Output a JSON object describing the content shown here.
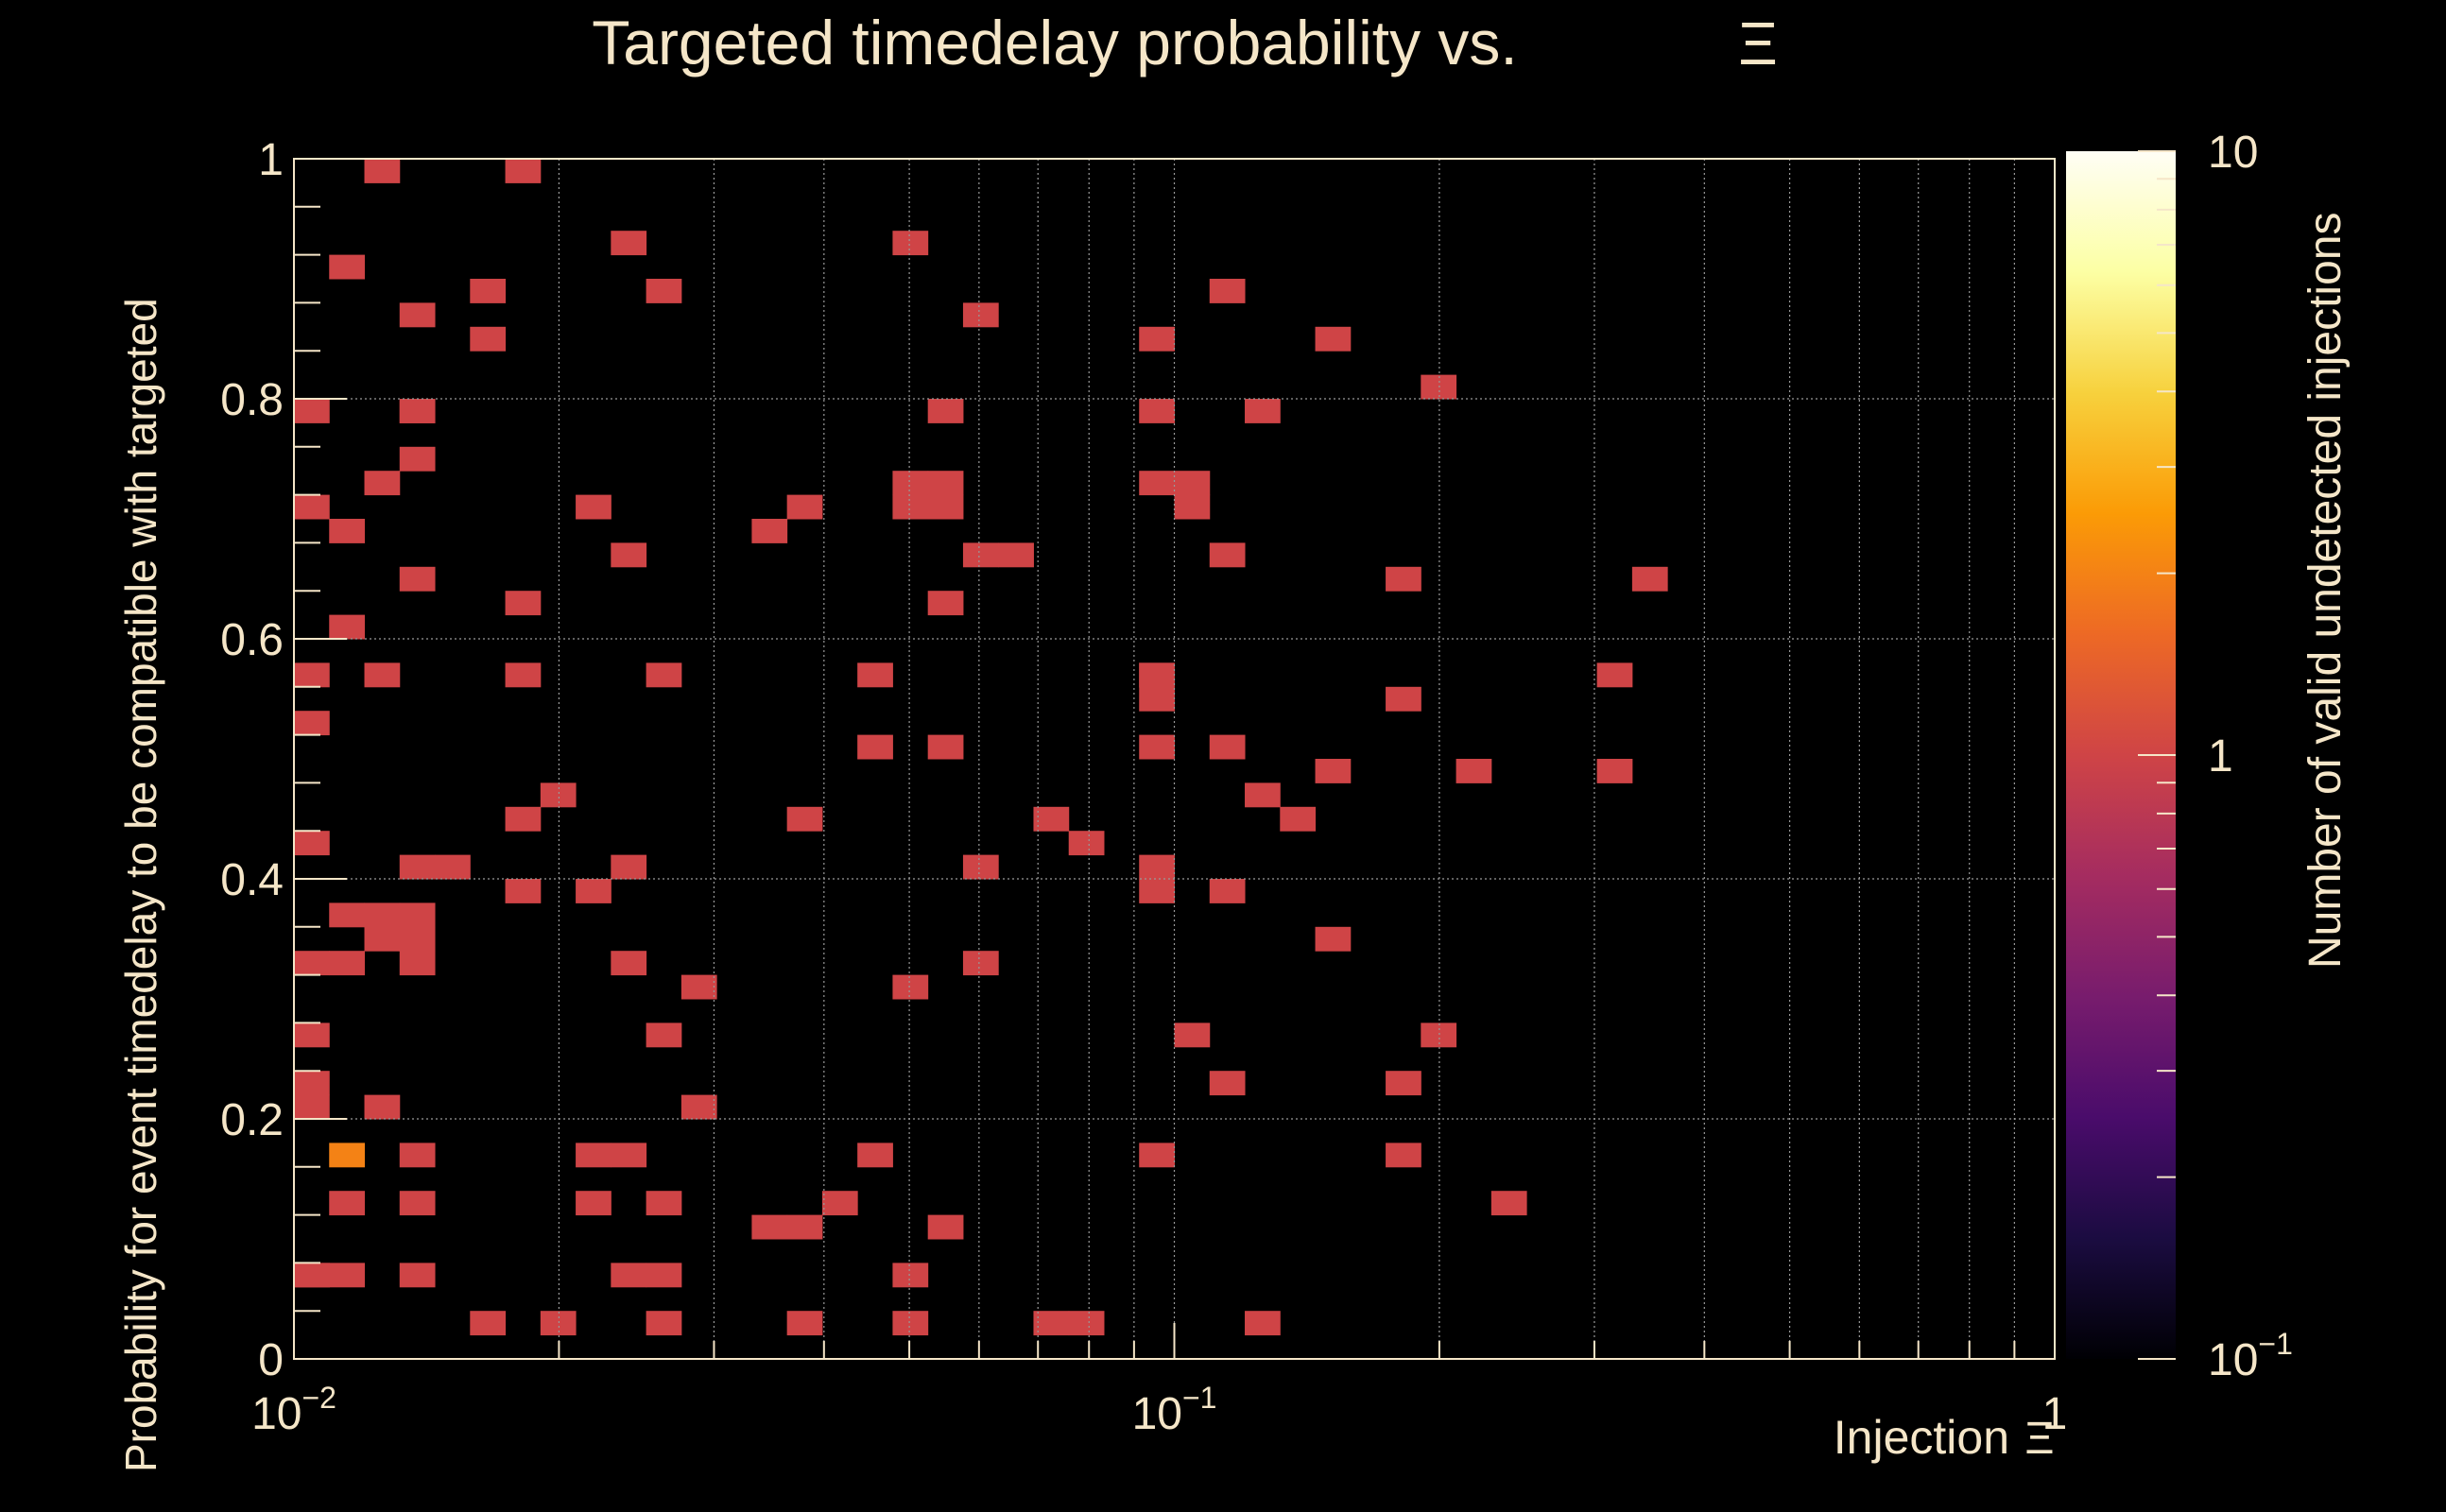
{
  "chart_data": {
    "type": "heatmap",
    "title": "Targeted timedelay probability vs.",
    "title_symbol": "Ξ",
    "xlabel": "Injection",
    "xlabel_symbol": "Ξ",
    "ylabel": "Probability for event timedelay to be compatible with targeted",
    "zlabel": "Number of valid undetected injections",
    "x_scale": "log",
    "xlim": [
      0.01,
      1
    ],
    "ylim": [
      0,
      1
    ],
    "z_scale": "log",
    "zlim": [
      0.1,
      10
    ],
    "x_ticks": [
      {
        "base": "10",
        "exp": "−2"
      },
      {
        "base": "10",
        "exp": "−1"
      },
      {
        "base": "1",
        "exp": ""
      }
    ],
    "y_ticks": [
      "0",
      "0.2",
      "0.4",
      "0.6",
      "0.8",
      "1"
    ],
    "z_ticks": [
      {
        "base": "10",
        "exp": "−1"
      },
      {
        "base": "1",
        "exp": ""
      },
      {
        "base": "10",
        "exp": ""
      }
    ],
    "grid": true,
    "colormap": [
      "#000004",
      "#1b0c41",
      "#4a0c6b",
      "#781c6d",
      "#a52c60",
      "#cf4446",
      "#ed6925",
      "#fb9b06",
      "#f7d13d",
      "#fcffa4",
      "#fffef5"
    ],
    "colormap_note": "inferno",
    "cells": [
      {
        "x": 0.0104,
        "y": 0.78,
        "count": 1
      },
      {
        "x": 0.0104,
        "y": 0.7,
        "count": 1
      },
      {
        "x": 0.0104,
        "y": 0.56,
        "count": 1
      },
      {
        "x": 0.0104,
        "y": 0.52,
        "count": 1
      },
      {
        "x": 0.0104,
        "y": 0.42,
        "count": 1
      },
      {
        "x": 0.0104,
        "y": 0.32,
        "count": 1
      },
      {
        "x": 0.0104,
        "y": 0.26,
        "count": 1
      },
      {
        "x": 0.0104,
        "y": 0.24,
        "count": 1
      },
      {
        "x": 0.0104,
        "y": 0.2,
        "count": 1
      },
      {
        "x": 0.0104,
        "y": 0.08,
        "count": 1
      },
      {
        "x": 0.0104,
        "y": 0.06,
        "count": 1
      },
      {
        "x": 0.0112,
        "y": 0.9,
        "count": 1
      },
      {
        "x": 0.0112,
        "y": 0.68,
        "count": 1
      },
      {
        "x": 0.0112,
        "y": 0.6,
        "count": 1
      },
      {
        "x": 0.0112,
        "y": 0.36,
        "count": 1
      },
      {
        "x": 0.0112,
        "y": 0.32,
        "count": 1
      },
      {
        "x": 0.0112,
        "y": 0.18,
        "count": 2
      },
      {
        "x": 0.0112,
        "y": 0.12,
        "count": 1
      },
      {
        "x": 0.0112,
        "y": 0.06,
        "count": 1
      },
      {
        "x": 0.0122,
        "y": 0.98,
        "count": 1
      },
      {
        "x": 0.0122,
        "y": 0.72,
        "count": 1
      },
      {
        "x": 0.0122,
        "y": 0.58,
        "count": 1
      },
      {
        "x": 0.0122,
        "y": 0.36,
        "count": 1
      },
      {
        "x": 0.0122,
        "y": 0.34,
        "count": 1
      },
      {
        "x": 0.0122,
        "y": 0.2,
        "count": 1
      },
      {
        "x": 0.0132,
        "y": 0.86,
        "count": 1
      },
      {
        "x": 0.0132,
        "y": 0.78,
        "count": 1
      },
      {
        "x": 0.0132,
        "y": 0.74,
        "count": 1
      },
      {
        "x": 0.0132,
        "y": 0.64,
        "count": 1
      },
      {
        "x": 0.0132,
        "y": 0.36,
        "count": 1
      },
      {
        "x": 0.0132,
        "y": 0.34,
        "count": 1
      },
      {
        "x": 0.0132,
        "y": 0.16,
        "count": 1
      },
      {
        "x": 0.0132,
        "y": 0.06,
        "count": 1
      },
      {
        "x": 0.0143,
        "y": 0.78,
        "count": 1
      },
      {
        "x": 0.0143,
        "y": 0.4,
        "count": 1
      },
      {
        "x": 0.0143,
        "y": 0.32,
        "count": 1
      },
      {
        "x": 0.0143,
        "y": 0.14,
        "count": 1
      },
      {
        "x": 0.0155,
        "y": 0.4,
        "count": 1
      },
      {
        "x": 0.0168,
        "y": 0.88,
        "count": 1
      },
      {
        "x": 0.0168,
        "y": 0.84,
        "count": 1
      },
      {
        "x": 0.0168,
        "y": 0.04,
        "count": 1
      },
      {
        "x": 0.0182,
        "y": 0.98,
        "count": 1
      },
      {
        "x": 0.0182,
        "y": 0.62,
        "count": 1
      },
      {
        "x": 0.0182,
        "y": 0.58,
        "count": 1
      },
      {
        "x": 0.0182,
        "y": 0.44,
        "count": 1
      },
      {
        "x": 0.0182,
        "y": 0.38,
        "count": 1
      },
      {
        "x": 0.0197,
        "y": 0.46,
        "count": 1
      },
      {
        "x": 0.0197,
        "y": 0.04,
        "count": 1
      },
      {
        "x": 0.0214,
        "y": 0.7,
        "count": 1
      },
      {
        "x": 0.0214,
        "y": 0.38,
        "count": 1
      },
      {
        "x": 0.0214,
        "y": 0.16,
        "count": 1
      },
      {
        "x": 0.0214,
        "y": 0.12,
        "count": 1
      },
      {
        "x": 0.0232,
        "y": 0.66,
        "count": 1
      },
      {
        "x": 0.0232,
        "y": 0.32,
        "count": 1
      },
      {
        "x": 0.0232,
        "y": 0.06,
        "count": 1
      },
      {
        "x": 0.0251,
        "y": 0.92,
        "count": 1
      },
      {
        "x": 0.0251,
        "y": 0.4,
        "count": 1
      },
      {
        "x": 0.0251,
        "y": 0.16,
        "count": 1
      },
      {
        "x": 0.0272,
        "y": 0.88,
        "count": 1
      },
      {
        "x": 0.0272,
        "y": 0.58,
        "count": 1
      },
      {
        "x": 0.0272,
        "y": 0.26,
        "count": 1
      },
      {
        "x": 0.0272,
        "y": 0.12,
        "count": 1
      },
      {
        "x": 0.0272,
        "y": 0.06,
        "count": 1
      },
      {
        "x": 0.0272,
        "y": 0.04,
        "count": 1
      },
      {
        "x": 0.0295,
        "y": 0.3,
        "count": 1
      },
      {
        "x": 0.0295,
        "y": 0.2,
        "count": 1
      },
      {
        "x": 0.0347,
        "y": 0.68,
        "count": 1
      },
      {
        "x": 0.0347,
        "y": 0.1,
        "count": 1
      },
      {
        "x": 0.0376,
        "y": 0.7,
        "count": 1
      },
      {
        "x": 0.0376,
        "y": 0.44,
        "count": 1
      },
      {
        "x": 0.0376,
        "y": 0.1,
        "count": 1
      },
      {
        "x": 0.0376,
        "y": 0.04,
        "count": 1
      },
      {
        "x": 0.0408,
        "y": 0.14,
        "count": 1
      },
      {
        "x": 0.0442,
        "y": 0.58,
        "count": 1
      },
      {
        "x": 0.0442,
        "y": 0.5,
        "count": 1
      },
      {
        "x": 0.0442,
        "y": 0.18,
        "count": 1
      },
      {
        "x": 0.0479,
        "y": 0.02,
        "count": 1
      },
      {
        "x": 0.052,
        "y": 0.92,
        "count": 1
      },
      {
        "x": 0.052,
        "y": 0.72,
        "count": 1
      },
      {
        "x": 0.052,
        "y": 0.7,
        "count": 1
      },
      {
        "x": 0.052,
        "y": 0.3,
        "count": 1
      },
      {
        "x": 0.052,
        "y": 0.06,
        "count": 1
      },
      {
        "x": 0.0564,
        "y": 0.78,
        "count": 1
      },
      {
        "x": 0.0564,
        "y": 0.72,
        "count": 1
      },
      {
        "x": 0.0564,
        "y": 0.7,
        "count": 1
      },
      {
        "x": 0.0564,
        "y": 0.62,
        "count": 1
      },
      {
        "x": 0.0564,
        "y": 0.5,
        "count": 1
      },
      {
        "x": 0.0564,
        "y": 0.1,
        "count": 1
      },
      {
        "x": 0.0611,
        "y": 0.86,
        "count": 1
      },
      {
        "x": 0.0611,
        "y": 0.66,
        "count": 1
      },
      {
        "x": 0.0611,
        "y": 0.4,
        "count": 1
      },
      {
        "x": 0.0611,
        "y": 0.32,
        "count": 1
      },
      {
        "x": 0.0663,
        "y": 0.66,
        "count": 1
      },
      {
        "x": 0.0718,
        "y": 0.44,
        "count": 1
      },
      {
        "x": 0.0718,
        "y": 0.04,
        "count": 1
      },
      {
        "x": 0.0779,
        "y": 0.42,
        "count": 1
      },
      {
        "x": 0.0779,
        "y": 0.04,
        "count": 1
      },
      {
        "x": 0.0916,
        "y": 0.84,
        "count": 1
      },
      {
        "x": 0.0916,
        "y": 0.78,
        "count": 1
      },
      {
        "x": 0.0916,
        "y": 0.72,
        "count": 1
      },
      {
        "x": 0.0916,
        "y": 0.58,
        "count": 1
      },
      {
        "x": 0.0916,
        "y": 0.56,
        "count": 1
      },
      {
        "x": 0.0916,
        "y": 0.5,
        "count": 1
      },
      {
        "x": 0.0916,
        "y": 0.38,
        "count": 1
      },
      {
        "x": 0.0993,
        "y": 0.54,
        "count": 1
      },
      {
        "x": 0.0993,
        "y": 0.4,
        "count": 1
      },
      {
        "x": 0.0993,
        "y": 0.16,
        "count": 1
      },
      {
        "x": 0.1077,
        "y": 0.72,
        "count": 1
      },
      {
        "x": 0.1077,
        "y": 0.7,
        "count": 1
      },
      {
        "x": 0.1077,
        "y": 0.26,
        "count": 1
      },
      {
        "x": 0.1168,
        "y": 0.88,
        "count": 1
      },
      {
        "x": 0.1168,
        "y": 0.66,
        "count": 1
      },
      {
        "x": 0.1168,
        "y": 0.5,
        "count": 1
      },
      {
        "x": 0.1168,
        "y": 0.38,
        "count": 1
      },
      {
        "x": 0.1168,
        "y": 0.24,
        "count": 1
      },
      {
        "x": 0.1266,
        "y": 0.78,
        "count": 1
      },
      {
        "x": 0.1266,
        "y": 0.46,
        "count": 1
      },
      {
        "x": 0.1266,
        "y": 0.04,
        "count": 1
      },
      {
        "x": 0.1373,
        "y": 0.44,
        "count": 1
      },
      {
        "x": 0.1489,
        "y": 0.84,
        "count": 1
      },
      {
        "x": 0.1489,
        "y": 0.48,
        "count": 1
      },
      {
        "x": 0.1489,
        "y": 0.34,
        "count": 1
      },
      {
        "x": 0.1752,
        "y": 0.54,
        "count": 1
      },
      {
        "x": 0.19,
        "y": 0.64,
        "count": 1
      },
      {
        "x": 0.19,
        "y": 0.24,
        "count": 1
      },
      {
        "x": 0.19,
        "y": 0.16,
        "count": 1
      },
      {
        "x": 0.206,
        "y": 0.8,
        "count": 1
      },
      {
        "x": 0.206,
        "y": 0.26,
        "count": 1
      },
      {
        "x": 0.2234,
        "y": 0.48,
        "count": 1
      },
      {
        "x": 0.2423,
        "y": 0.14,
        "count": 1
      },
      {
        "x": 0.3091,
        "y": 0.56,
        "count": 1
      },
      {
        "x": 0.3091,
        "y": 0.48,
        "count": 1
      },
      {
        "x": 0.3352,
        "y": 0.64,
        "count": 1
      }
    ]
  }
}
